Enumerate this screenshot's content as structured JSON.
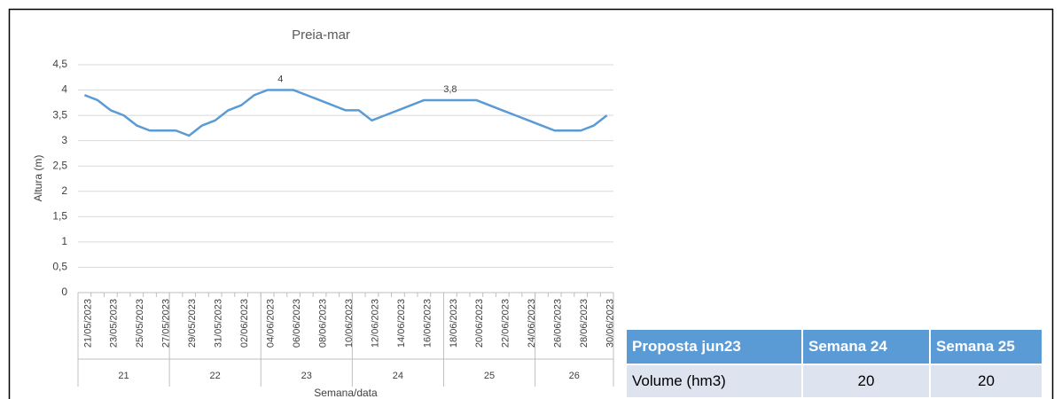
{
  "chart_data": {
    "type": "line",
    "title": "Preia-mar",
    "y_label": "Altura (m)",
    "x_label": "Semana/data",
    "categories": [
      "21/05/2023",
      null,
      "23/05/2023",
      null,
      "25/05/2023",
      null,
      "27/05/2023",
      null,
      "29/05/2023",
      null,
      "31/05/2023",
      null,
      "02/06/2023",
      null,
      "04/06/2023",
      null,
      "06/06/2023",
      null,
      "08/06/2023",
      null,
      "10/06/2023",
      null,
      "12/06/2023",
      null,
      "14/06/2023",
      null,
      "16/06/2023",
      null,
      "18/06/2023",
      null,
      "20/06/2023",
      null,
      "22/06/2023",
      null,
      "24/06/2023",
      null,
      "26/06/2023",
      null,
      "28/06/2023",
      null,
      "30/06/2023"
    ],
    "groups": [
      {
        "label": "21",
        "count": 7
      },
      {
        "label": "22",
        "count": 7
      },
      {
        "label": "23",
        "count": 7
      },
      {
        "label": "24",
        "count": 7
      },
      {
        "label": "25",
        "count": 7
      },
      {
        "label": "26",
        "count": 6
      }
    ],
    "values": [
      3.9,
      3.8,
      3.6,
      3.5,
      3.3,
      3.2,
      3.2,
      3.2,
      3.1,
      3.3,
      3.4,
      3.6,
      3.7,
      3.9,
      4.0,
      4.0,
      4.0,
      3.9,
      3.8,
      3.7,
      3.6,
      3.6,
      3.4,
      3.5,
      3.6,
      3.7,
      3.8,
      3.8,
      3.8,
      3.8,
      3.8,
      3.7,
      3.6,
      3.5,
      3.4,
      3.3,
      3.2,
      3.2,
      3.2,
      3.3,
      3.5
    ],
    "value_labels": [
      null,
      null,
      null,
      null,
      null,
      null,
      null,
      null,
      null,
      null,
      null,
      null,
      null,
      null,
      null,
      "4",
      null,
      null,
      null,
      null,
      null,
      null,
      null,
      null,
      null,
      null,
      null,
      null,
      "3,8",
      null,
      null,
      null,
      null,
      null,
      null,
      null,
      null,
      null,
      null,
      null,
      null
    ],
    "color": "#5b9bd5",
    "grid": true,
    "ylim": [
      0,
      4.5
    ],
    "yticks": [
      0,
      {
        "value": 0.5,
        "label": "0,5"
      },
      1,
      {
        "value": 1.5,
        "label": "1,5"
      },
      2,
      {
        "value": 2.5,
        "label": "2,5"
      },
      3,
      {
        "value": 3.5,
        "label": "3,5"
      },
      4,
      {
        "value": 4.5,
        "label": "4,5"
      }
    ]
  },
  "table": {
    "header": [
      "Proposta jun23",
      "Semana 24",
      "Semana 25"
    ],
    "rows": [
      [
        "Volume (hm3)",
        "20",
        "20"
      ]
    ]
  }
}
